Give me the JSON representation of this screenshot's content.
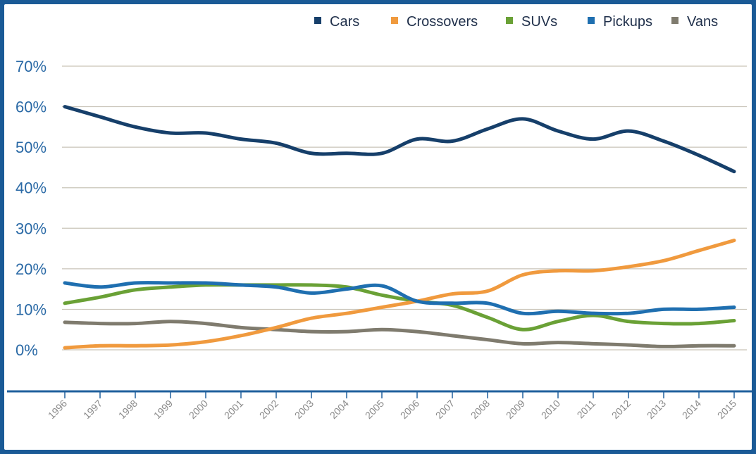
{
  "chart_data": {
    "type": "line",
    "title": "",
    "xlabel": "",
    "ylabel": "",
    "x": [
      1996,
      1997,
      1998,
      1999,
      2000,
      2001,
      2002,
      2003,
      2004,
      2005,
      2006,
      2007,
      2008,
      2009,
      2010,
      2011,
      2012,
      2013,
      2014,
      2015
    ],
    "x_labels": [
      "1996",
      "1997",
      "1998",
      "1999",
      "2000",
      "2001",
      "2002",
      "2003",
      "2004",
      "2005",
      "2006",
      "2007",
      "2008",
      "2009",
      "2010",
      "2011",
      "2012",
      "2013",
      "2014",
      "2015"
    ],
    "ylim": [
      0,
      70
    ],
    "y_ticks": [
      0,
      10,
      20,
      30,
      40,
      50,
      60,
      70
    ],
    "y_tick_labels": [
      "0%",
      "10%",
      "20%",
      "30%",
      "40%",
      "50%",
      "60%",
      "70%"
    ],
    "grid": "horizontal",
    "legend_position": "top-right",
    "series": [
      {
        "name": "Cars",
        "color": "#163f6a",
        "values": [
          60,
          57.5,
          55,
          53.5,
          53.5,
          52,
          51,
          48.5,
          48.5,
          48.5,
          52,
          51.5,
          54.5,
          57,
          54,
          52,
          54,
          51.5,
          48,
          44
        ]
      },
      {
        "name": "Crossovers",
        "color": "#f09a3e",
        "values": [
          0.5,
          1,
          1,
          1.2,
          2,
          3.5,
          5.5,
          7.8,
          9,
          10.5,
          12,
          13.8,
          14.5,
          18.5,
          19.5,
          19.5,
          20.5,
          22,
          24.5,
          27
        ]
      },
      {
        "name": "SUVs",
        "color": "#6aa136",
        "values": [
          11.5,
          13,
          14.8,
          15.5,
          16,
          16,
          16,
          16,
          15.5,
          13.5,
          12,
          11,
          8,
          5,
          7,
          8.5,
          7,
          6.5,
          6.5,
          7.2
        ]
      },
      {
        "name": "Pickups",
        "color": "#1f6fb0",
        "values": [
          16.5,
          15.5,
          16.5,
          16.5,
          16.5,
          16,
          15.5,
          14,
          15,
          15.8,
          12,
          11.5,
          11.5,
          9,
          9.5,
          9,
          9,
          10,
          10,
          10.5
        ]
      },
      {
        "name": "Vans",
        "color": "#7f7b6e",
        "values": [
          6.8,
          6.5,
          6.5,
          7,
          6.5,
          5.5,
          5,
          4.5,
          4.5,
          5,
          4.5,
          3.5,
          2.5,
          1.5,
          1.8,
          1.5,
          1.2,
          0.8,
          1,
          1
        ]
      }
    ]
  }
}
